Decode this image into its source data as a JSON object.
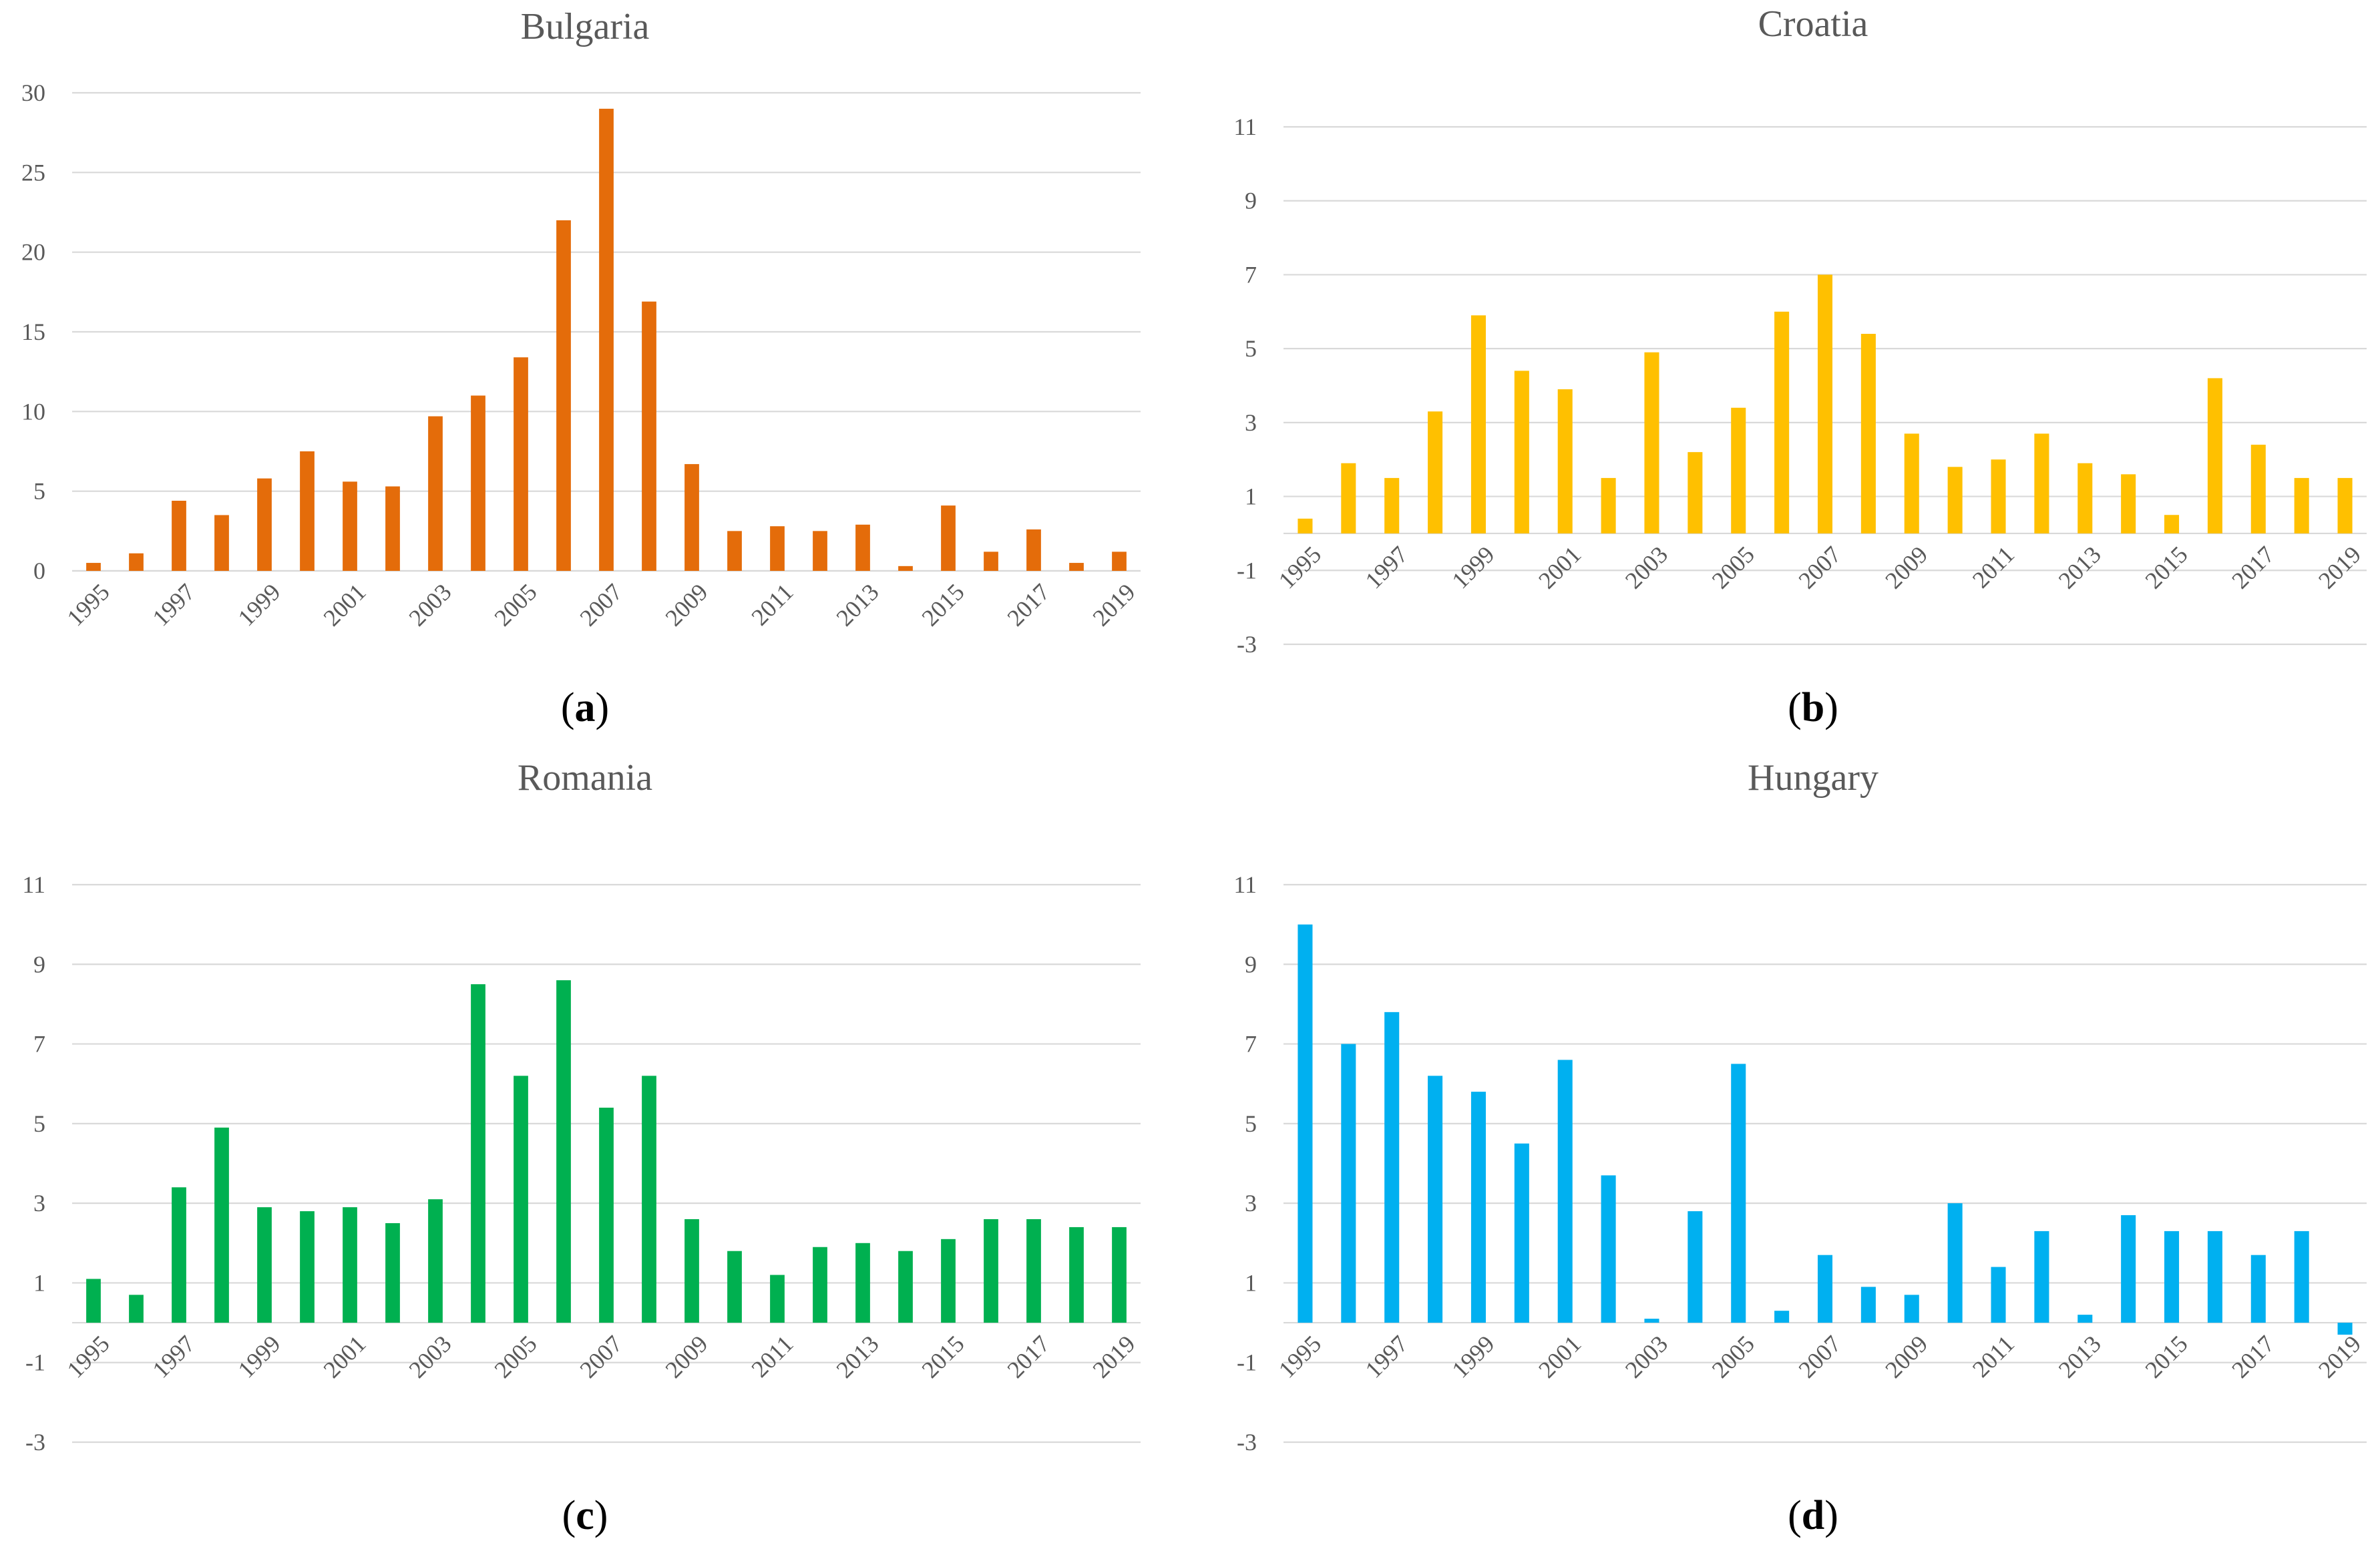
{
  "categories": [
    "1995",
    "1996",
    "1997",
    "1998",
    "1999",
    "2000",
    "2001",
    "2002",
    "2003",
    "2004",
    "2005",
    "2006",
    "2007",
    "2008",
    "2009",
    "2010",
    "2011",
    "2012",
    "2013",
    "2014",
    "2015",
    "2016",
    "2017",
    "2018",
    "2019"
  ],
  "chart_data": [
    {
      "type": "bar",
      "title": "Bulgaria",
      "caption_letter": "a",
      "color": "#E46C0A",
      "ylim": [
        0,
        30
      ],
      "yticks": [
        0,
        5,
        10,
        15,
        20,
        25,
        30
      ],
      "xticks": [
        "1995",
        "1997",
        "1999",
        "2001",
        "2003",
        "2005",
        "2007",
        "2009",
        "2011",
        "2013",
        "2015",
        "2017",
        "2019"
      ],
      "categories": [
        "1995",
        "1996",
        "1997",
        "1998",
        "1999",
        "2000",
        "2001",
        "2002",
        "2003",
        "2004",
        "2005",
        "2006",
        "2007",
        "2008",
        "2009",
        "2010",
        "2011",
        "2012",
        "2013",
        "2014",
        "2015",
        "2016",
        "2017",
        "2018",
        "2019"
      ],
      "values": [
        0.5,
        1.1,
        4.4,
        3.5,
        5.8,
        7.5,
        5.6,
        5.3,
        9.7,
        11.0,
        13.4,
        22.0,
        29.0,
        16.9,
        6.7,
        2.5,
        2.8,
        2.5,
        2.9,
        0.3,
        4.1,
        1.2,
        2.6,
        0.5,
        1.2
      ],
      "xlabel": "",
      "ylabel": ""
    },
    {
      "type": "bar",
      "title": "Croatia",
      "caption_letter": "b",
      "color": "#FFC000",
      "ylim": [
        -3,
        11
      ],
      "yticks": [
        -3,
        -1,
        1,
        3,
        5,
        7,
        9,
        11
      ],
      "xticks": [
        "1995",
        "1997",
        "1999",
        "2001",
        "2003",
        "2005",
        "2007",
        "2009",
        "2011",
        "2013",
        "2015",
        "2017",
        "2019"
      ],
      "categories": [
        "1995",
        "1996",
        "1997",
        "1998",
        "1999",
        "2000",
        "2001",
        "2002",
        "2003",
        "2004",
        "2005",
        "2006",
        "2007",
        "2008",
        "2009",
        "2010",
        "2011",
        "2012",
        "2013",
        "2014",
        "2015",
        "2016",
        "2017",
        "2018",
        "2019"
      ],
      "values": [
        0.4,
        1.9,
        1.5,
        3.3,
        5.9,
        4.4,
        3.9,
        1.5,
        4.9,
        2.2,
        3.4,
        6.0,
        7.0,
        5.4,
        2.7,
        1.8,
        2.0,
        2.7,
        1.9,
        1.6,
        0.5,
        4.2,
        2.4,
        1.5,
        1.5
      ],
      "xlabel": "",
      "ylabel": ""
    },
    {
      "type": "bar",
      "title": "Romania",
      "caption_letter": "c",
      "color": "#00B050",
      "ylim": [
        -3,
        11
      ],
      "yticks": [
        -3,
        -1,
        1,
        3,
        5,
        7,
        9,
        11
      ],
      "xticks": [
        "1995",
        "1997",
        "1999",
        "2001",
        "2003",
        "2005",
        "2007",
        "2009",
        "2011",
        "2013",
        "2015",
        "2017",
        "2019"
      ],
      "categories": [
        "1995",
        "1996",
        "1997",
        "1998",
        "1999",
        "2000",
        "2001",
        "2002",
        "2003",
        "2004",
        "2005",
        "2006",
        "2007",
        "2008",
        "2009",
        "2010",
        "2011",
        "2012",
        "2013",
        "2014",
        "2015",
        "2016",
        "2017",
        "2018",
        "2019"
      ],
      "values": [
        1.1,
        0.7,
        3.4,
        4.9,
        2.9,
        2.8,
        2.9,
        2.5,
        3.1,
        8.5,
        6.2,
        8.6,
        5.4,
        6.2,
        2.6,
        1.8,
        1.2,
        1.9,
        2.0,
        1.8,
        2.1,
        2.6,
        2.6,
        2.4,
        2.4
      ],
      "xlabel": "",
      "ylabel": ""
    },
    {
      "type": "bar",
      "title": "Hungary",
      "caption_letter": "d",
      "color": "#00B0F0",
      "ylim": [
        -3,
        11
      ],
      "yticks": [
        -3,
        -1,
        1,
        3,
        5,
        7,
        9,
        11
      ],
      "xticks": [
        "1995",
        "1997",
        "1999",
        "2001",
        "2003",
        "2005",
        "2007",
        "2009",
        "2011",
        "2013",
        "2015",
        "2017",
        "2019"
      ],
      "categories": [
        "1995",
        "1996",
        "1997",
        "1998",
        "1999",
        "2000",
        "2001",
        "2002",
        "2003",
        "2004",
        "2005",
        "2006",
        "2007",
        "2008",
        "2009",
        "2010",
        "2011",
        "2012",
        "2013",
        "2014",
        "2015",
        "2016",
        "2017",
        "2018",
        "2019"
      ],
      "values": [
        10.0,
        7.0,
        7.8,
        6.2,
        5.8,
        4.5,
        6.6,
        3.7,
        0.1,
        2.8,
        6.5,
        0.3,
        1.7,
        0.9,
        0.7,
        3.0,
        1.4,
        2.3,
        0.2,
        2.7,
        2.3,
        2.3,
        1.7,
        2.3,
        -0.3
      ],
      "xlabel": "",
      "ylabel": ""
    }
  ]
}
